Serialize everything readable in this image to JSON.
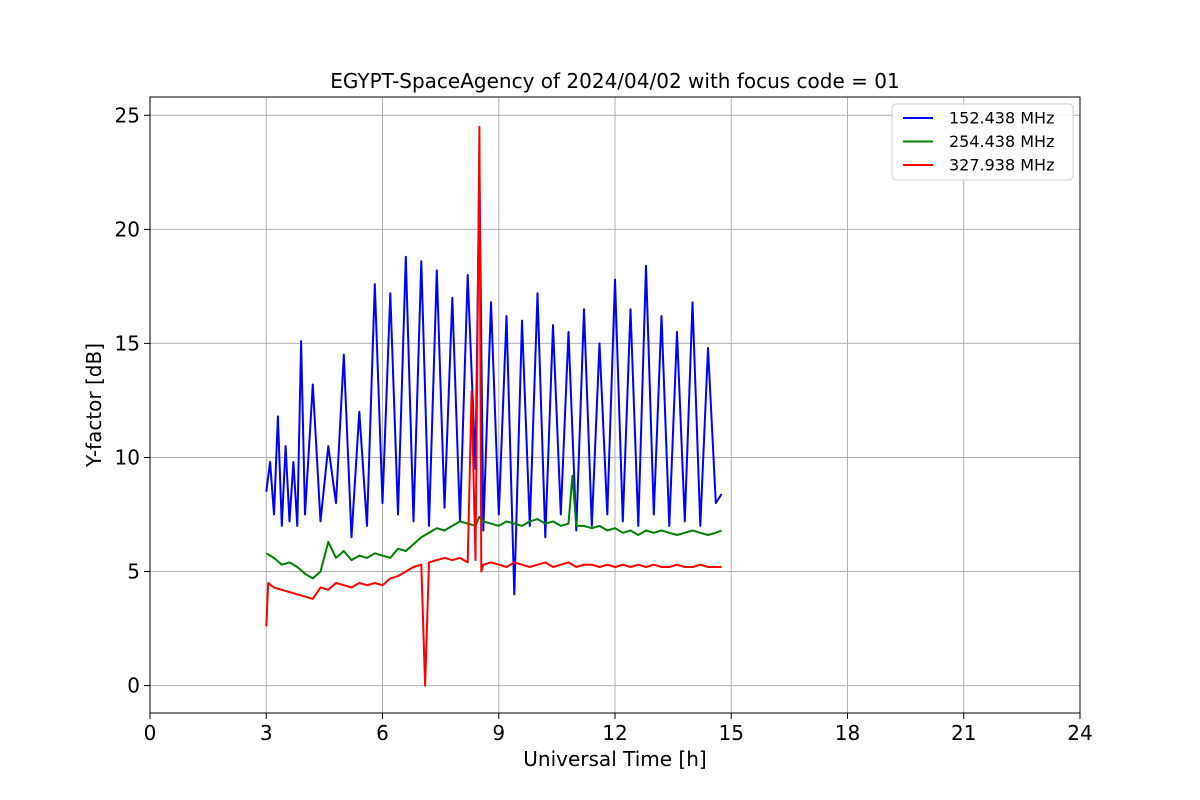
{
  "chart_data": {
    "type": "line",
    "title": "EGYPT-SpaceAgency of 2024/04/02 with focus code = 01",
    "xlabel": "Universal Time [h]",
    "ylabel": "Y-factor [dB]",
    "xlim": [
      0,
      24
    ],
    "ylim": [
      -1.2,
      25.8
    ],
    "xticks": [
      0,
      3,
      6,
      9,
      12,
      15,
      18,
      21,
      24
    ],
    "yticks": [
      0,
      5,
      10,
      15,
      20,
      25
    ],
    "grid": true,
    "legend_position": "top-right",
    "series": [
      {
        "name": "152.438 MHz",
        "color": "#0000ff",
        "x": [
          3.0,
          3.1,
          3.2,
          3.3,
          3.4,
          3.5,
          3.6,
          3.7,
          3.8,
          3.9,
          4.0,
          4.2,
          4.4,
          4.6,
          4.8,
          5.0,
          5.2,
          5.4,
          5.6,
          5.8,
          6.0,
          6.2,
          6.4,
          6.6,
          6.8,
          7.0,
          7.2,
          7.4,
          7.6,
          7.8,
          8.0,
          8.2,
          8.4,
          8.5,
          8.6,
          8.8,
          9.0,
          9.2,
          9.4,
          9.6,
          9.8,
          10.0,
          10.2,
          10.4,
          10.6,
          10.8,
          11.0,
          11.2,
          11.4,
          11.6,
          11.8,
          12.0,
          12.2,
          12.4,
          12.6,
          12.8,
          13.0,
          13.2,
          13.4,
          13.6,
          13.8,
          14.0,
          14.2,
          14.4,
          14.6,
          14.75
        ],
        "y": [
          8.5,
          9.8,
          7.5,
          11.8,
          7.0,
          10.5,
          7.2,
          9.8,
          7.0,
          15.1,
          7.5,
          13.2,
          7.2,
          10.5,
          8.0,
          14.5,
          6.5,
          12.0,
          7.0,
          17.6,
          8.0,
          17.2,
          7.5,
          18.8,
          7.2,
          18.6,
          7.0,
          18.2,
          7.8,
          17.0,
          7.2,
          18.0,
          9.5,
          22.7,
          6.8,
          16.8,
          7.5,
          16.2,
          4.0,
          16.0,
          7.0,
          17.2,
          6.5,
          15.8,
          7.5,
          15.5,
          6.8,
          16.5,
          7.0,
          15.0,
          7.5,
          17.8,
          7.2,
          16.5,
          7.0,
          18.4,
          7.5,
          16.2,
          7.0,
          15.5,
          7.2,
          16.8,
          7.0,
          14.8,
          8.0,
          8.4
        ]
      },
      {
        "name": "254.438 MHz",
        "color": "#008000",
        "x": [
          3.0,
          3.2,
          3.4,
          3.6,
          3.8,
          4.0,
          4.2,
          4.4,
          4.6,
          4.8,
          5.0,
          5.2,
          5.4,
          5.6,
          5.8,
          6.0,
          6.2,
          6.4,
          6.6,
          6.8,
          7.0,
          7.2,
          7.4,
          7.6,
          7.8,
          8.0,
          8.2,
          8.4,
          8.5,
          8.6,
          8.8,
          9.0,
          9.2,
          9.4,
          9.6,
          9.8,
          10.0,
          10.2,
          10.4,
          10.6,
          10.8,
          10.9,
          11.0,
          11.2,
          11.4,
          11.6,
          11.8,
          12.0,
          12.2,
          12.4,
          12.6,
          12.8,
          13.0,
          13.2,
          13.4,
          13.6,
          13.8,
          14.0,
          14.2,
          14.4,
          14.6,
          14.75
        ],
        "y": [
          5.8,
          5.6,
          5.3,
          5.4,
          5.2,
          4.9,
          4.7,
          5.0,
          6.3,
          5.6,
          5.9,
          5.5,
          5.7,
          5.6,
          5.8,
          5.7,
          5.6,
          6.0,
          5.9,
          6.2,
          6.5,
          6.7,
          6.9,
          6.8,
          7.0,
          7.2,
          7.1,
          7.0,
          7.4,
          7.2,
          7.1,
          7.0,
          7.2,
          7.1,
          7.0,
          7.2,
          7.3,
          7.1,
          7.2,
          7.0,
          7.1,
          9.2,
          7.0,
          7.0,
          6.9,
          7.0,
          6.8,
          6.9,
          6.7,
          6.8,
          6.6,
          6.8,
          6.7,
          6.8,
          6.7,
          6.6,
          6.7,
          6.8,
          6.7,
          6.6,
          6.7,
          6.8
        ]
      },
      {
        "name": "327.938 MHz",
        "color": "#ff0000",
        "x": [
          3.0,
          3.05,
          3.2,
          3.4,
          3.6,
          3.8,
          4.0,
          4.2,
          4.4,
          4.6,
          4.8,
          5.0,
          5.2,
          5.4,
          5.6,
          5.8,
          6.0,
          6.2,
          6.4,
          6.6,
          6.8,
          7.0,
          7.1,
          7.2,
          7.4,
          7.6,
          7.8,
          8.0,
          8.2,
          8.3,
          8.4,
          8.5,
          8.55,
          8.6,
          8.8,
          9.0,
          9.2,
          9.4,
          9.6,
          9.8,
          10.0,
          10.2,
          10.4,
          10.6,
          10.8,
          11.0,
          11.2,
          11.4,
          11.6,
          11.8,
          12.0,
          12.2,
          12.4,
          12.6,
          12.8,
          13.0,
          13.2,
          13.4,
          13.6,
          13.8,
          14.0,
          14.2,
          14.4,
          14.6,
          14.75
        ],
        "y": [
          2.6,
          4.5,
          4.3,
          4.2,
          4.1,
          4.0,
          3.9,
          3.8,
          4.3,
          4.2,
          4.5,
          4.4,
          4.3,
          4.5,
          4.4,
          4.5,
          4.4,
          4.7,
          4.8,
          5.0,
          5.2,
          5.3,
          0.0,
          5.4,
          5.5,
          5.6,
          5.5,
          5.6,
          5.4,
          12.9,
          5.5,
          24.5,
          5.0,
          5.3,
          5.4,
          5.3,
          5.2,
          5.4,
          5.3,
          5.2,
          5.3,
          5.4,
          5.2,
          5.3,
          5.4,
          5.2,
          5.3,
          5.3,
          5.2,
          5.3,
          5.2,
          5.3,
          5.2,
          5.3,
          5.2,
          5.3,
          5.2,
          5.2,
          5.3,
          5.2,
          5.2,
          5.3,
          5.2,
          5.2,
          5.2
        ]
      }
    ]
  }
}
